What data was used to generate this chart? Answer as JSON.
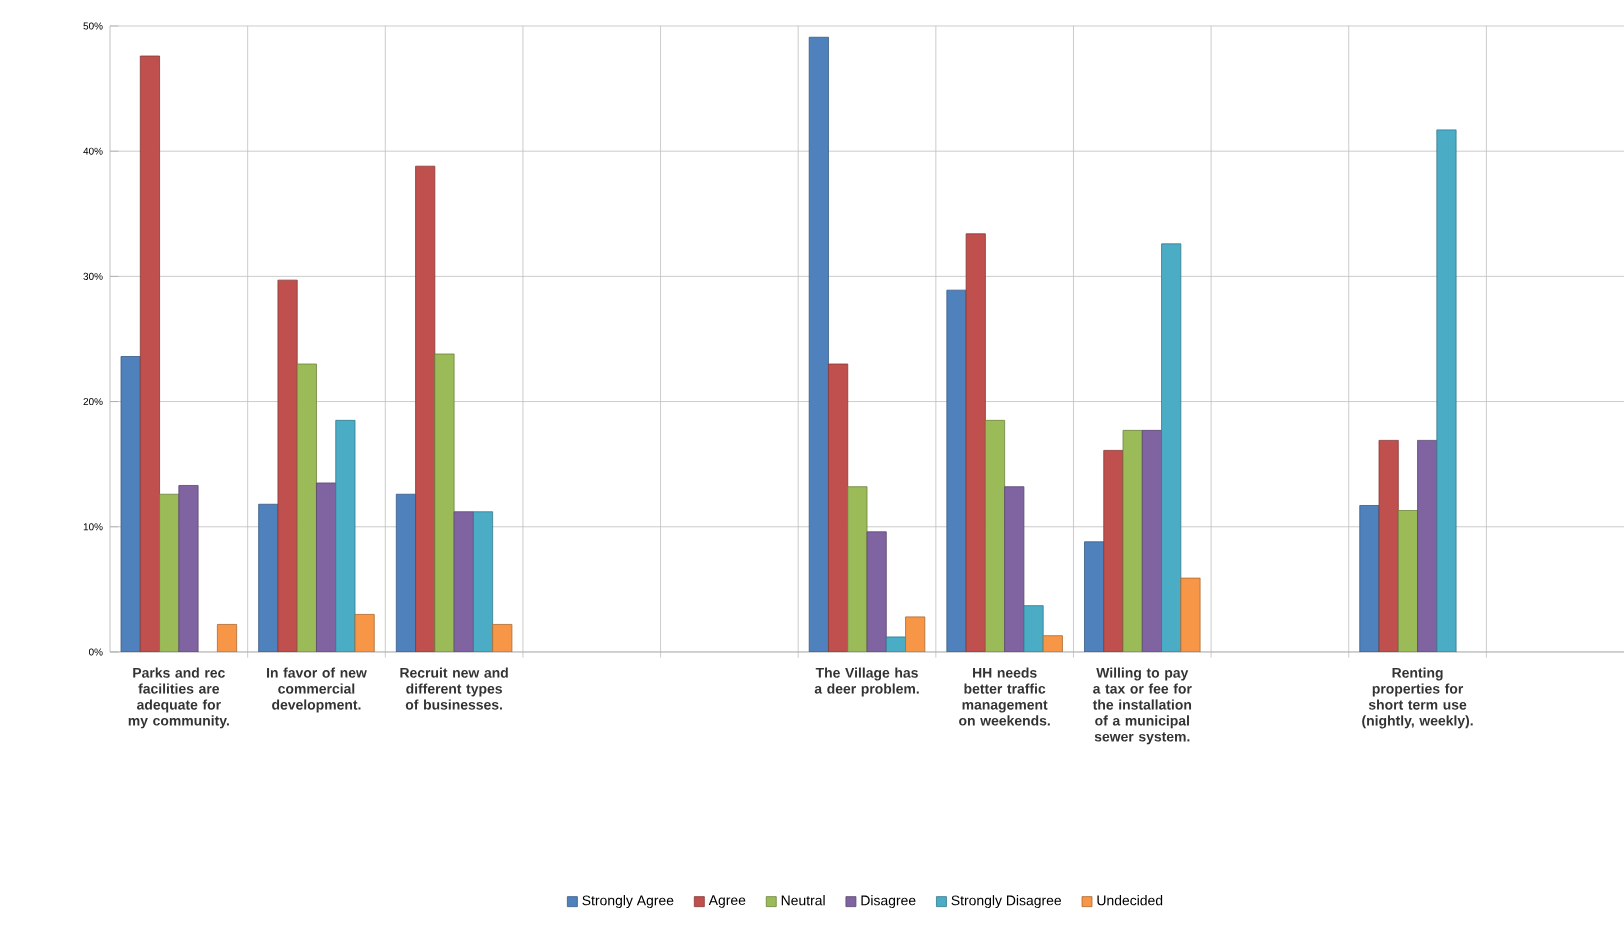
{
  "chart_data": {
    "type": "bar",
    "categories": [
      "Parks and rec facilities are adequate for my community.",
      "In favor of new commercial development.",
      "Recruit new and different types of businesses.",
      null,
      null,
      "The Village has a deer problem.",
      "HH needs better traffic management on weekends.",
      "Willing to pay a tax or fee for the installation of a municipal sewer system.",
      null,
      "Renting properties for short term use (nightly, weekly).",
      null
    ],
    "series": [
      {
        "name": "Strongly Agree",
        "color": "#4f81bd",
        "values": [
          23.6,
          11.8,
          12.6,
          null,
          null,
          49.1,
          28.9,
          8.8,
          null,
          11.7,
          null
        ]
      },
      {
        "name": "Agree",
        "color": "#c0504d",
        "values": [
          47.6,
          29.7,
          38.8,
          null,
          null,
          23,
          33.4,
          16.1,
          null,
          16.9,
          null
        ]
      },
      {
        "name": "Neutral",
        "color": "#9bbb59",
        "values": [
          12.6,
          23,
          23.8,
          null,
          null,
          13.2,
          18.5,
          17.7,
          null,
          11.3,
          null
        ]
      },
      {
        "name": "Disagree",
        "color": "#8064a2",
        "values": [
          13.3,
          13.5,
          11.2,
          null,
          null,
          9.6,
          13.2,
          17.7,
          null,
          16.9,
          null
        ]
      },
      {
        "name": "Strongly Disagree",
        "color": "#4bacc6",
        "values": [
          null,
          18.5,
          11.2,
          null,
          null,
          1.2,
          3.7,
          32.6,
          null,
          41.7,
          null
        ]
      },
      {
        "name": "Undecided",
        "color": "#f79646",
        "values": [
          2.2,
          3,
          2.2,
          null,
          null,
          2.8,
          1.3,
          5.9,
          null,
          null,
          null
        ]
      }
    ],
    "ylim": [
      0,
      50
    ],
    "yticks": [
      {
        "value": 0,
        "label": "0%"
      },
      {
        "value": 10,
        "label": "10%"
      },
      {
        "value": 20,
        "label": "20%"
      },
      {
        "value": 30,
        "label": "30%"
      },
      {
        "value": 40,
        "label": "40%"
      },
      {
        "value": 50,
        "label": "50%"
      }
    ],
    "grid": true,
    "legend": "bottom"
  }
}
